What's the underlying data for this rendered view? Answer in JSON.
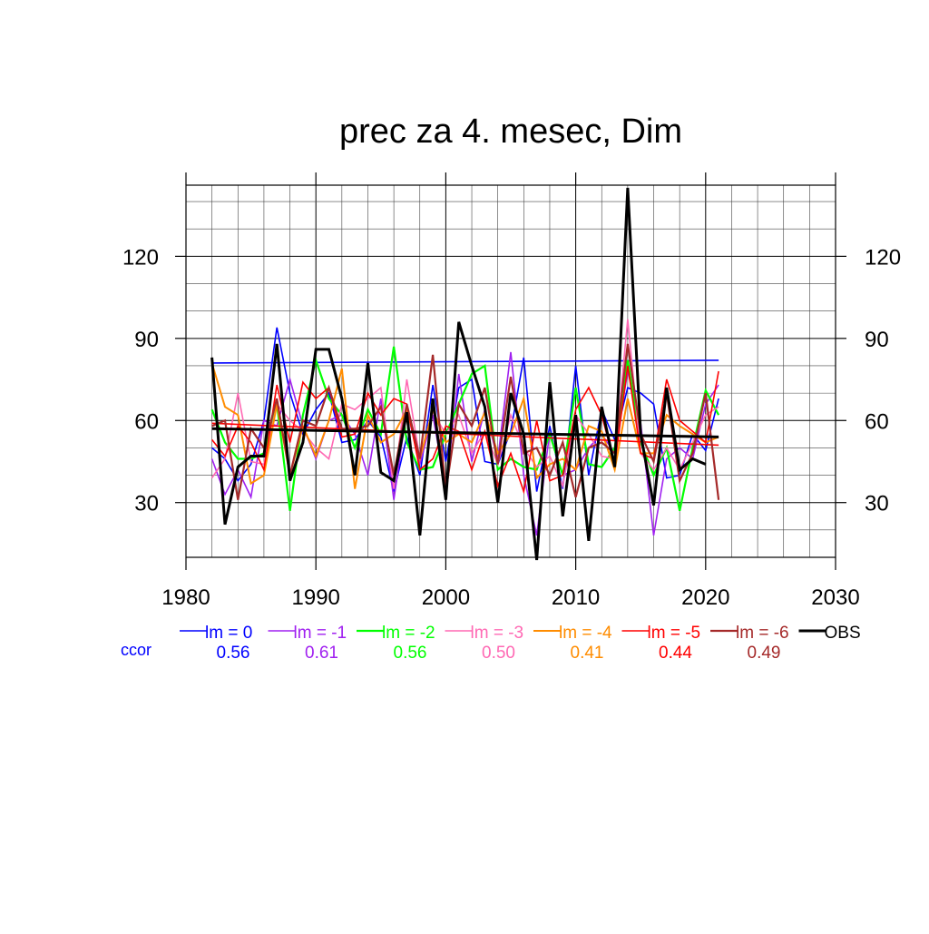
{
  "chart_data": {
    "type": "line",
    "title": "prec za 4. mesec, Dim",
    "xlim": [
      1980,
      2030
    ],
    "ylim": [
      10,
      146
    ],
    "xticks": [
      1980,
      1990,
      2000,
      2010,
      2020,
      2030
    ],
    "yticks": [
      30,
      60,
      90,
      120
    ],
    "grid": true,
    "x": [
      1982,
      1983,
      1984,
      1985,
      1986,
      1987,
      1988,
      1989,
      1990,
      1991,
      1992,
      1993,
      1994,
      1995,
      1996,
      1997,
      1998,
      1999,
      2000,
      2001,
      2002,
      2003,
      2004,
      2005,
      2006,
      2007,
      2008,
      2009,
      2010,
      2011,
      2012,
      2013,
      2014,
      2015,
      2016,
      2017,
      2018,
      2019,
      2020,
      2021
    ],
    "series": [
      {
        "name": "lm = 0",
        "color": "#0000ff",
        "width": 1.6,
        "values": [
          50,
          46,
          38,
          44,
          60,
          94,
          70,
          55,
          64,
          70,
          52,
          53,
          60,
          54,
          34,
          54,
          40,
          73,
          45,
          72,
          75,
          45,
          44,
          56,
          83,
          34,
          58,
          35,
          80,
          40,
          64,
          53,
          72,
          70,
          66,
          39,
          40,
          55,
          49,
          68
        ],
        "trend": [
          81,
          82
        ]
      },
      {
        "name": "lm = -1",
        "color": "#a020f0",
        "width": 1.6,
        "values": [
          46,
          33,
          42,
          32,
          60,
          58,
          75,
          58,
          46,
          60,
          62,
          55,
          40,
          68,
          31,
          64,
          44,
          62,
          35,
          77,
          45,
          64,
          46,
          85,
          40,
          18,
          56,
          40,
          42,
          50,
          55,
          48,
          78,
          59,
          18,
          46,
          50,
          46,
          66,
          73
        ]
      },
      {
        "name": "lm = -2",
        "color": "#00ff00",
        "width": 2.2,
        "values": [
          64,
          52,
          46,
          46,
          48,
          66,
          27,
          62,
          82,
          68,
          62,
          50,
          64,
          55,
          87,
          52,
          42,
          43,
          55,
          66,
          77,
          80,
          42,
          46,
          43,
          42,
          55,
          40,
          72,
          44,
          43,
          50,
          82,
          52,
          40,
          50,
          27,
          50,
          71,
          62
        ]
      },
      {
        "name": "lm = -3",
        "color": "#ff69b4",
        "width": 1.6,
        "values": [
          39,
          46,
          70,
          45,
          44,
          66,
          60,
          56,
          50,
          46,
          66,
          64,
          68,
          72,
          35,
          75,
          46,
          63,
          55,
          62,
          48,
          56,
          44,
          62,
          50,
          43,
          47,
          36,
          62,
          55,
          47,
          46,
          97,
          48,
          42,
          50,
          42,
          52,
          62,
          65
        ]
      },
      {
        "name": "lm = -4",
        "color": "#ff8c00",
        "width": 2.0,
        "values": [
          81,
          65,
          62,
          37,
          40,
          66,
          40,
          58,
          47,
          60,
          79,
          35,
          62,
          52,
          55,
          64,
          46,
          64,
          52,
          55,
          52,
          63,
          48,
          55,
          68,
          39,
          44,
          46,
          42,
          58,
          56,
          42,
          68,
          48,
          48,
          62,
          58,
          55,
          52,
          54
        ]
      },
      {
        "name": "lm = -5",
        "color": "#ff0000",
        "width": 1.6,
        "values": [
          53,
          47,
          58,
          52,
          42,
          73,
          52,
          74,
          68,
          72,
          54,
          55,
          70,
          62,
          68,
          66,
          42,
          46,
          58,
          56,
          42,
          56,
          36,
          48,
          34,
          60,
          38,
          40,
          64,
          72,
          62,
          44,
          80,
          48,
          46,
          75,
          60,
          56,
          52,
          78
        ],
        "trend": [
          59,
          51
        ]
      },
      {
        "name": "lm = -6",
        "color": "#a52a2a",
        "width": 2.2,
        "values": [
          58,
          60,
          31,
          57,
          50,
          68,
          40,
          60,
          58,
          72,
          57,
          57,
          58,
          65,
          40,
          66,
          46,
          84,
          34,
          66,
          58,
          72,
          44,
          76,
          48,
          50,
          40,
          52,
          32,
          50,
          52,
          48,
          88,
          55,
          45,
          70,
          38,
          48,
          70,
          31
        ]
      },
      {
        "name": "OBS",
        "color": "#000000",
        "width": 3.0,
        "values": [
          83,
          22,
          43,
          47,
          47,
          88,
          38,
          52,
          86,
          86,
          68,
          40,
          81,
          41,
          38,
          63,
          18,
          68,
          31,
          96,
          80,
          65,
          30,
          70,
          55,
          9,
          74,
          25,
          62,
          16,
          65,
          43,
          145,
          55,
          29,
          72,
          42,
          46,
          44,
          null
        ],
        "trend": [
          57,
          54
        ]
      }
    ],
    "legend": {
      "placement": "bottom",
      "ccor_label": "ccor",
      "ccor_values": [
        "0.56",
        "0.61",
        "0.56",
        "0.50",
        "0.41",
        "0.44",
        "0.49"
      ]
    }
  }
}
